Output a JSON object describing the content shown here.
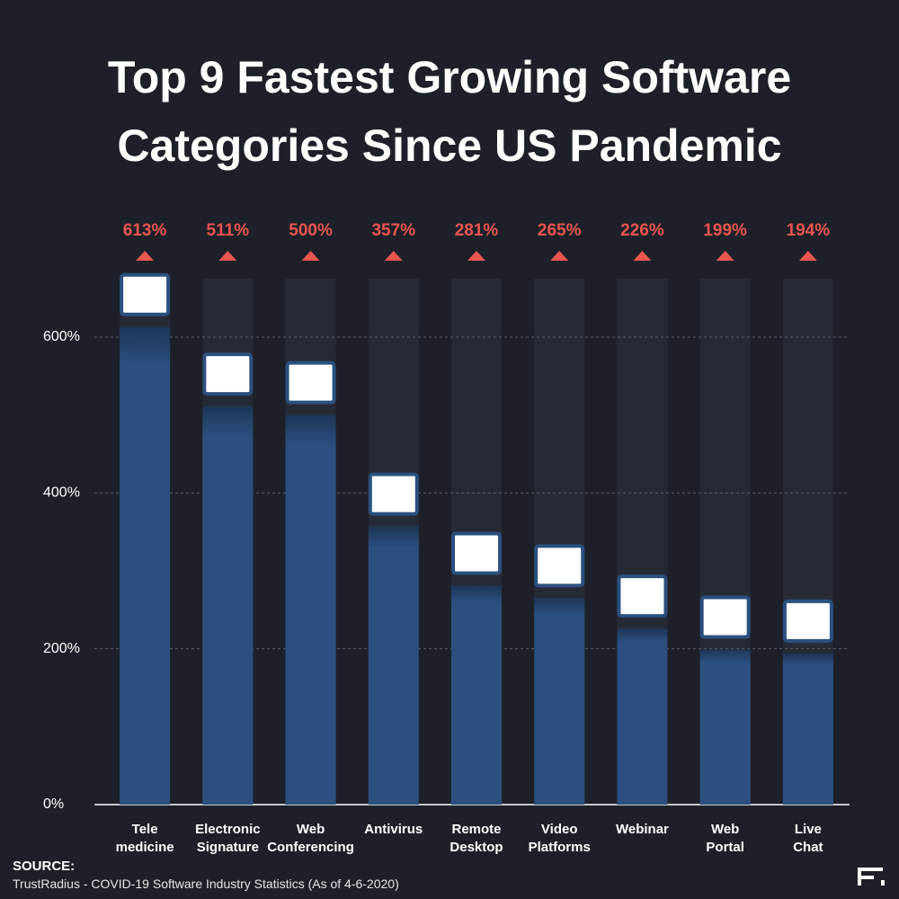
{
  "chart_data": {
    "type": "bar",
    "title": "Top 9 Fastest Growing Software Categories Since US Pandemic",
    "categories": [
      "Tele medicine",
      "Electronic Signature",
      "Web Conferencing",
      "Antivirus",
      "Remote Desktop",
      "Video Platforms",
      "Webinar",
      "Web Portal",
      "Live Chat"
    ],
    "values": [
      613,
      511,
      500,
      357,
      281,
      265,
      226,
      199,
      194
    ],
    "value_labels": [
      "613%",
      "511%",
      "500%",
      "357%",
      "281%",
      "265%",
      "226%",
      "199%",
      "194%"
    ],
    "color": "#2b5080",
    "ylim": [
      0,
      675
    ],
    "yticks": [
      {
        "value": 0,
        "label": "0%"
      },
      {
        "value": 200,
        "label": "200%"
      },
      {
        "value": 400,
        "label": "400%"
      },
      {
        "value": 600,
        "label": "600%"
      }
    ],
    "grid": true,
    "source_label": "SOURCE:",
    "source": "TrustRadius - COVID-19 Software Industry Statistics (As of 4-6-2020)"
  }
}
